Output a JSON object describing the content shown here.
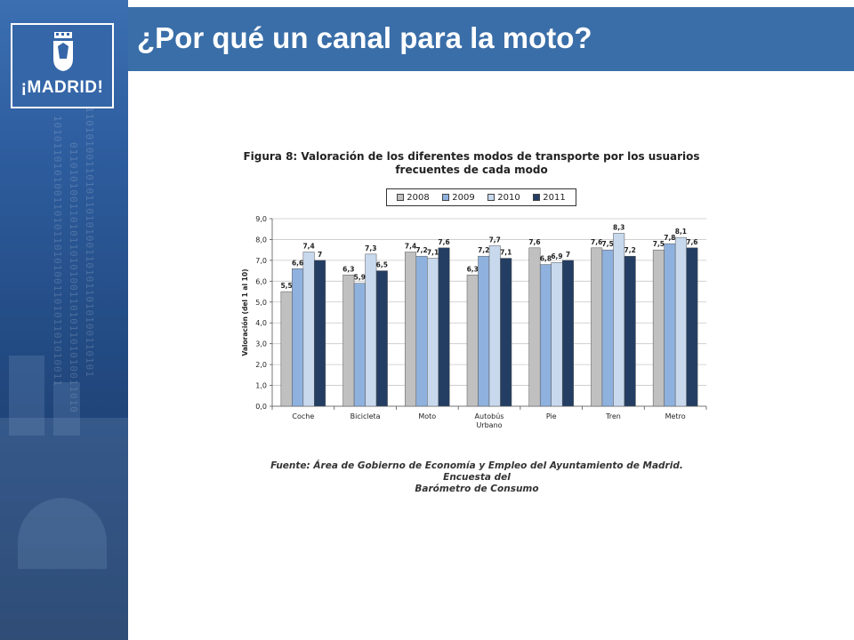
{
  "slide": {
    "title": "¿Por qué un canal para la moto?"
  },
  "logo": {
    "text": "¡MADRID!"
  },
  "figure": {
    "title_line1": "Figura 8: Valoración de los diferentes modos de transporte por los usuarios",
    "title_line2": "frecuentes de cada modo",
    "source_line1": "Fuente: Área de Gobierno de Economía y Empleo del Ayuntamiento de Madrid. Encuesta del",
    "source_line2": "Barómetro de Consumo"
  },
  "chart_data": {
    "type": "bar",
    "ylabel": "Valoración (del 1 al 10)",
    "ylim": [
      0,
      9
    ],
    "yticks": [
      "0,0",
      "1,0",
      "2,0",
      "3,0",
      "4,0",
      "5,0",
      "6,0",
      "7,0",
      "8,0",
      "9,0"
    ],
    "grid": true,
    "legend_position": "top",
    "categories": [
      "Coche",
      "Bicicleta",
      "Moto",
      "Autobús Urbano",
      "Pie",
      "Tren",
      "Metro"
    ],
    "category_labels": [
      [
        "Coche"
      ],
      [
        "Bicicleta"
      ],
      [
        "Moto"
      ],
      [
        "Autobús",
        "Urbano"
      ],
      [
        "Pie"
      ],
      [
        "Tren"
      ],
      [
        "Metro"
      ]
    ],
    "series": [
      {
        "name": "2008",
        "color": "#c0c0c0",
        "values": [
          5.5,
          6.3,
          7.4,
          6.3,
          7.6,
          7.6,
          7.5
        ],
        "labels": [
          "5,5",
          "6,3",
          "7,4",
          "6,3",
          "7,6",
          "7,6",
          "7,5"
        ]
      },
      {
        "name": "2009",
        "color": "#8fb1de",
        "values": [
          6.6,
          5.9,
          7.2,
          7.2,
          6.8,
          7.5,
          7.8
        ],
        "labels": [
          "6,6",
          "5,9",
          "7,2",
          "7,2",
          "6,8",
          "7,5",
          "7,8"
        ]
      },
      {
        "name": "2010",
        "color": "#c8d9ee",
        "values": [
          7.4,
          7.3,
          7.1,
          7.7,
          6.9,
          8.3,
          8.1
        ],
        "labels": [
          "7,4",
          "7,3",
          "7,1",
          "7,7",
          "6,9",
          "8,3",
          "8,1"
        ]
      },
      {
        "name": "2011",
        "color": "#243e63",
        "values": [
          7.0,
          6.5,
          7.6,
          7.1,
          7.0,
          7.2,
          7.6
        ],
        "labels": [
          "7",
          "6,5",
          "7,6",
          "7,1",
          "7",
          "7,2",
          "7,6"
        ]
      }
    ]
  }
}
